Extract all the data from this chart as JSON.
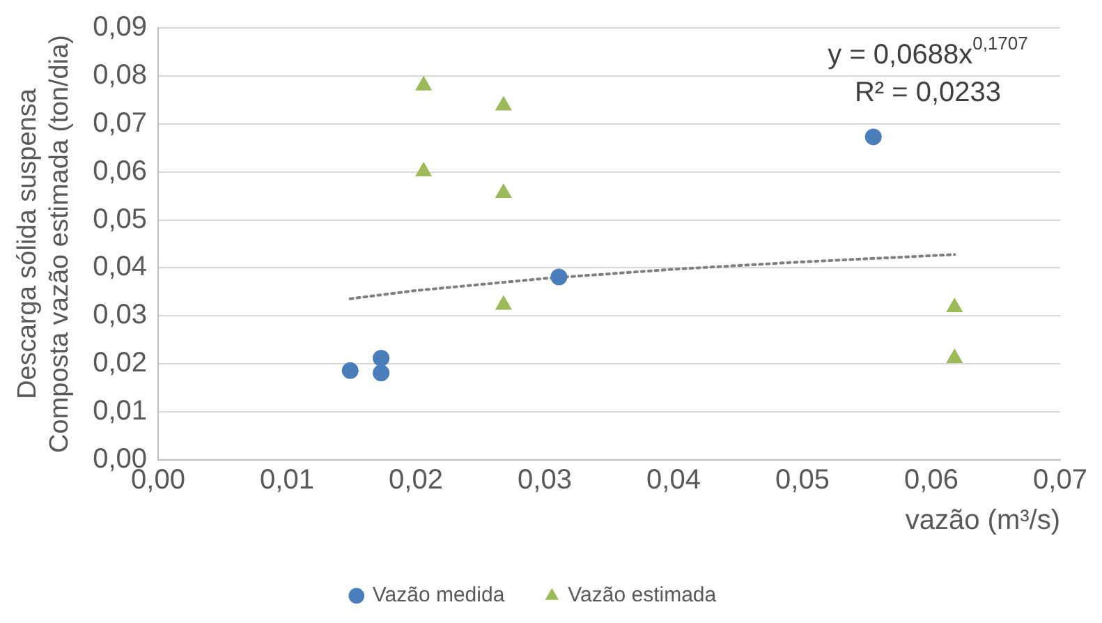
{
  "chart_data": {
    "type": "scatter",
    "xlabel": "vazão (m³/s)",
    "ylabel": "Descarga sólida suspensa\nComposta vazão estimada (ton/dia)",
    "series": [
      {
        "name": "Vazão medida",
        "color": "#4a7ebb",
        "marker": "circle",
        "x": [
          0.0149,
          0.0173,
          0.0173,
          0.0311,
          0.0555
        ],
        "values": [
          0.0186,
          0.0212,
          0.0181,
          0.0381,
          0.0673
        ]
      },
      {
        "name": "Vazão estimada",
        "color": "#9bbb59",
        "marker": "triangle",
        "x": [
          0.0206,
          0.0206,
          0.0268,
          0.0268,
          0.0268,
          0.0618,
          0.0618
        ],
        "values": [
          0.078,
          0.0601,
          0.0738,
          0.0556,
          0.0323,
          0.0318,
          0.0212
        ]
      },
      {
        "type": "line",
        "color": "#7f7f7f",
        "line_style": "dotted",
        "marker": "none",
        "x": [
          0.0149,
          0.02,
          0.03,
          0.04,
          0.05,
          0.0618
        ],
        "values": [
          0.03356,
          0.03528,
          0.03781,
          0.03972,
          0.04126,
          0.04278
        ]
      }
    ],
    "annotations": [
      "y = 0,0688x$^{0,1707}$",
      "R² = 0,0233"
    ],
    "xlim": [
      0,
      0.07
    ],
    "xticks": [
      {
        "value": 0,
        "label": "0,00"
      },
      {
        "value": 0.01,
        "label": "0,01"
      },
      {
        "value": 0.02,
        "label": "0,02"
      },
      {
        "value": 0.03,
        "label": "0,03"
      },
      {
        "value": 0.04,
        "label": "0,04"
      },
      {
        "value": 0.05,
        "label": "0,05"
      },
      {
        "value": 0.06,
        "label": "0,06"
      },
      {
        "value": 0.07,
        "label": "0,07"
      }
    ],
    "ylim": [
      0,
      0.09
    ],
    "yticks": [
      {
        "value": 0,
        "label": "0,00"
      },
      {
        "value": 0.01,
        "label": "0,01"
      },
      {
        "value": 0.02,
        "label": "0,02"
      },
      {
        "value": 0.03,
        "label": "0,03"
      },
      {
        "value": 0.04,
        "label": "0,04"
      },
      {
        "value": 0.05,
        "label": "0,05"
      },
      {
        "value": 0.06,
        "label": "0,06"
      },
      {
        "value": 0.07,
        "label": "0,07"
      },
      {
        "value": 0.08,
        "label": "0,08"
      },
      {
        "value": 0.09,
        "label": "0,09"
      }
    ],
    "grid": "y",
    "legend": "bottom"
  }
}
